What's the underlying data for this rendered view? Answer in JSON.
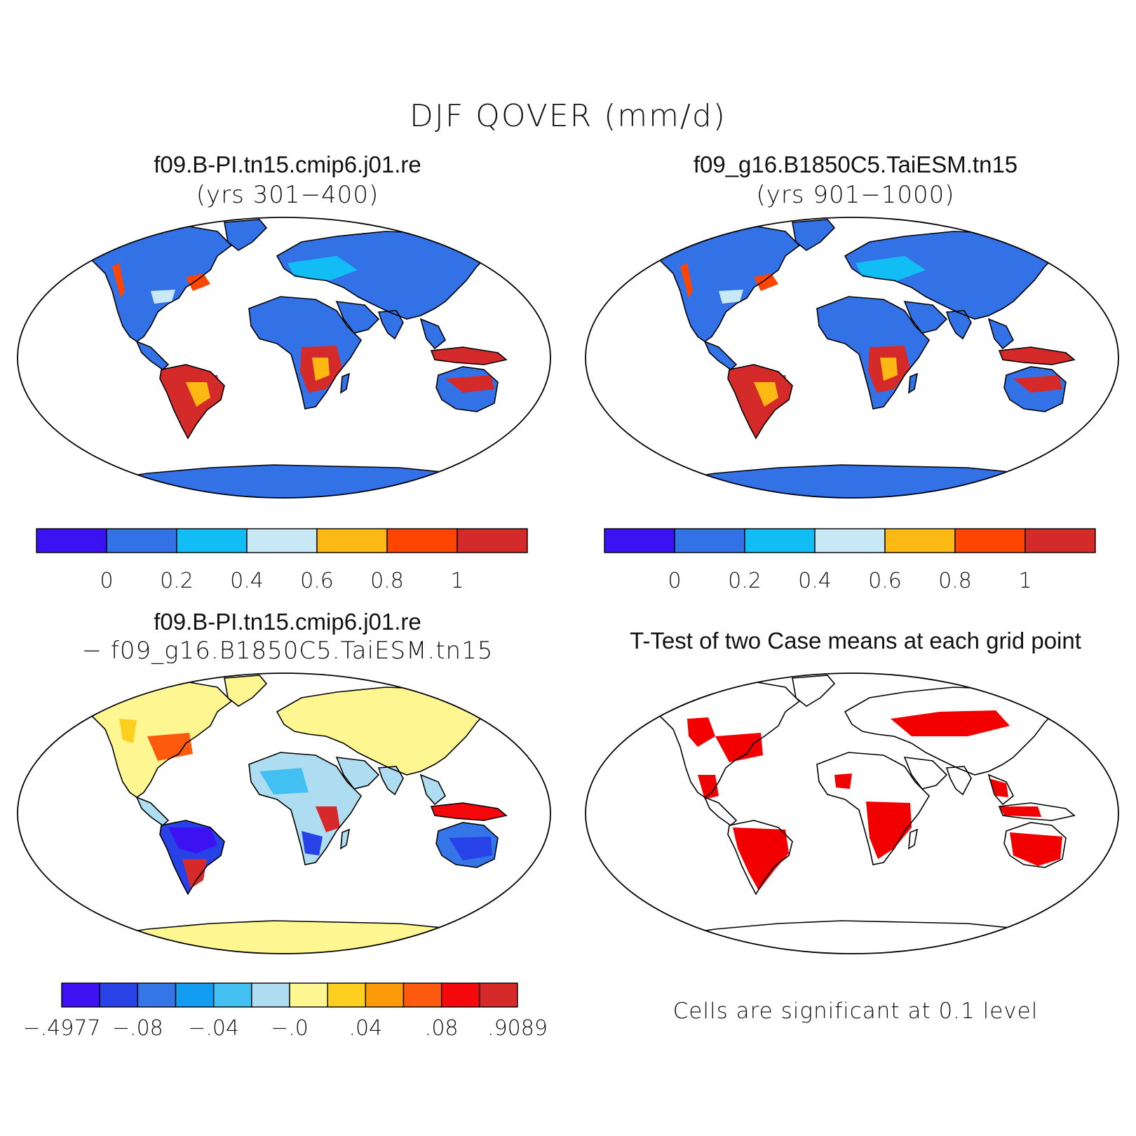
{
  "main_title": "DJF QOVER (mm/d)",
  "panels": [
    {
      "title": "f09.B-PI.tn15.cmip6.j01.re",
      "subtitle": "(yrs 301−400)",
      "colorbar_labels": [
        "0",
        "0.2",
        "0.4",
        "0.6",
        "0.8",
        "1"
      ]
    },
    {
      "title": "f09_g16.B1850C5.TaiESM.tn15",
      "subtitle": "(yrs 901−1000)",
      "colorbar_labels": [
        "0",
        "0.2",
        "0.4",
        "0.6",
        "0.8",
        "1"
      ]
    },
    {
      "title": "f09.B-PI.tn15.cmip6.j01.re",
      "subtitle": "− f09_g16.B1850C5.TaiESM.tn15",
      "colorbar_labels": [
        "−.4977",
        "−.08",
        "−.04",
        "−.0",
        ".04",
        ".08",
        ".9089"
      ]
    },
    {
      "title": "T-Test of two Case means at each grid point",
      "note": "Cells are significant at 0.1 level"
    }
  ],
  "colors": {
    "abs_scale": [
      "#3b12f2",
      "#3371e6",
      "#12bdf5",
      "#c9e8f5",
      "#fdb913",
      "#ff4500",
      "#d42a2a"
    ],
    "diff_scale": [
      "#3c12f2",
      "#2742e6",
      "#3476e8",
      "#129cf2",
      "#43c0f2",
      "#aedcf0",
      "#fef691",
      "#fdd020",
      "#fd9a0a",
      "#fe5a0e",
      "#f4080c",
      "#d62a2a"
    ],
    "significant": "#f20000"
  }
}
